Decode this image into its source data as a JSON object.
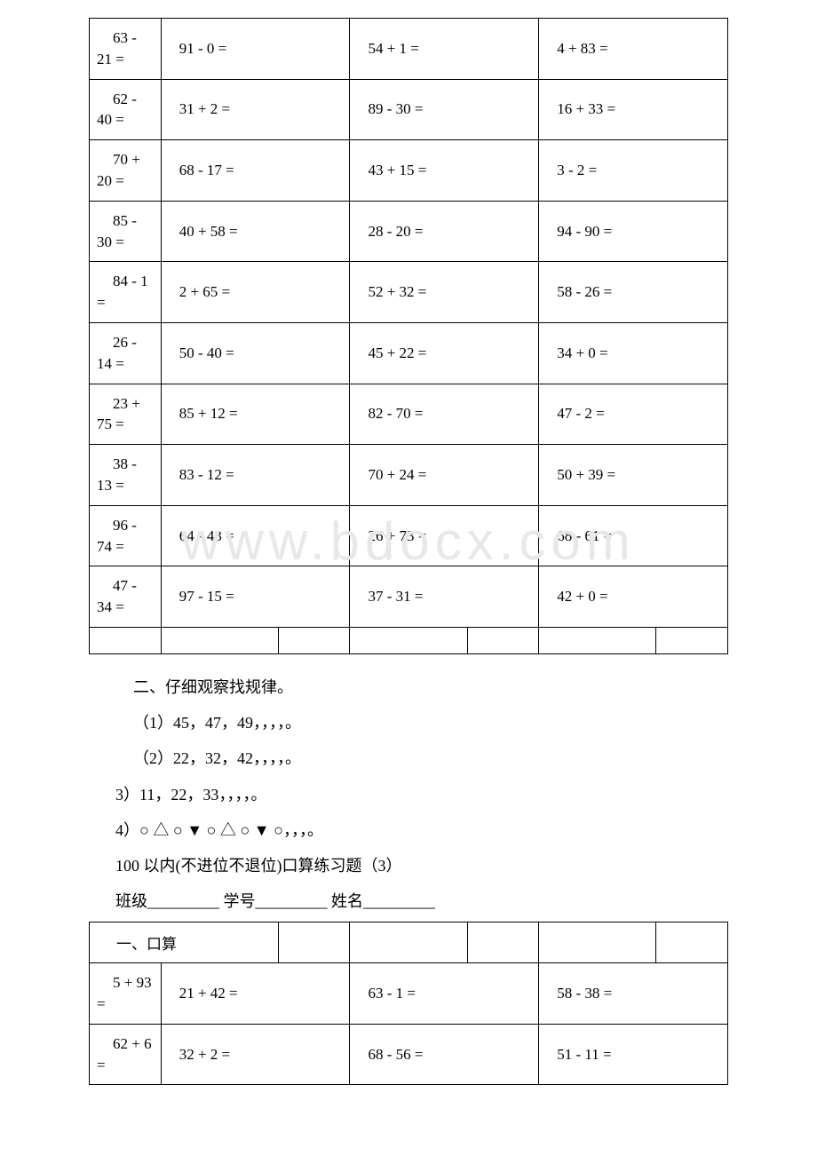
{
  "watermark": "www.bdocx.com",
  "table1": {
    "rows": [
      [
        "63 - 21 =",
        "91 - 0 =",
        "54 + 1 =",
        "4 + 83 ="
      ],
      [
        "62 - 40 =",
        "31 + 2 =",
        "89 - 30 =",
        "16 + 33 ="
      ],
      [
        "70 + 20 =",
        "68 - 17 =",
        "43 + 15 =",
        "3 - 2 ="
      ],
      [
        "85 - 30 =",
        "40 + 58 =",
        "28 - 20 =",
        "94 - 90 ="
      ],
      [
        "84 - 1 =",
        "2 + 65 =",
        "52 + 32 =",
        "58 - 26 ="
      ],
      [
        "26 - 14 =",
        "50 - 40 =",
        "45 + 22 =",
        "34 + 0 ="
      ],
      [
        "23 + 75 =",
        "85 + 12 =",
        "82 - 70 =",
        "47 - 2 ="
      ],
      [
        "38 - 13 =",
        "83 - 12 =",
        "70 + 24 =",
        "50 + 39 ="
      ],
      [
        "96 - 74 =",
        "64 - 43 =",
        "26 + 73 =",
        "68 - 61 ="
      ],
      [
        "47 - 34 =",
        "97 - 15 =",
        "37 - 31 =",
        "42 + 0 ="
      ]
    ]
  },
  "section2": {
    "title": "二、仔细观察找规律。",
    "items": [
      "（1）45，47，49，，，，。",
      "（2）22，32，42，，，，。",
      "3）11，22，33，，，，。",
      "4）○ △ ○ ▼ ○ △ ○ ▼ ○，，，。"
    ]
  },
  "section3": {
    "title": "100 以内(不进位不退位)口算练习题（3）",
    "subtitle": "班级_________ 学号_________ 姓名_________"
  },
  "table2": {
    "header": "一、口算",
    "rows": [
      [
        "5 + 93 =",
        "21 + 42 =",
        "63 - 1 =",
        "58 - 38 ="
      ],
      [
        "62 + 6 =",
        "32 + 2 =",
        "68 - 56 =",
        "51 - 11 ="
      ]
    ]
  }
}
